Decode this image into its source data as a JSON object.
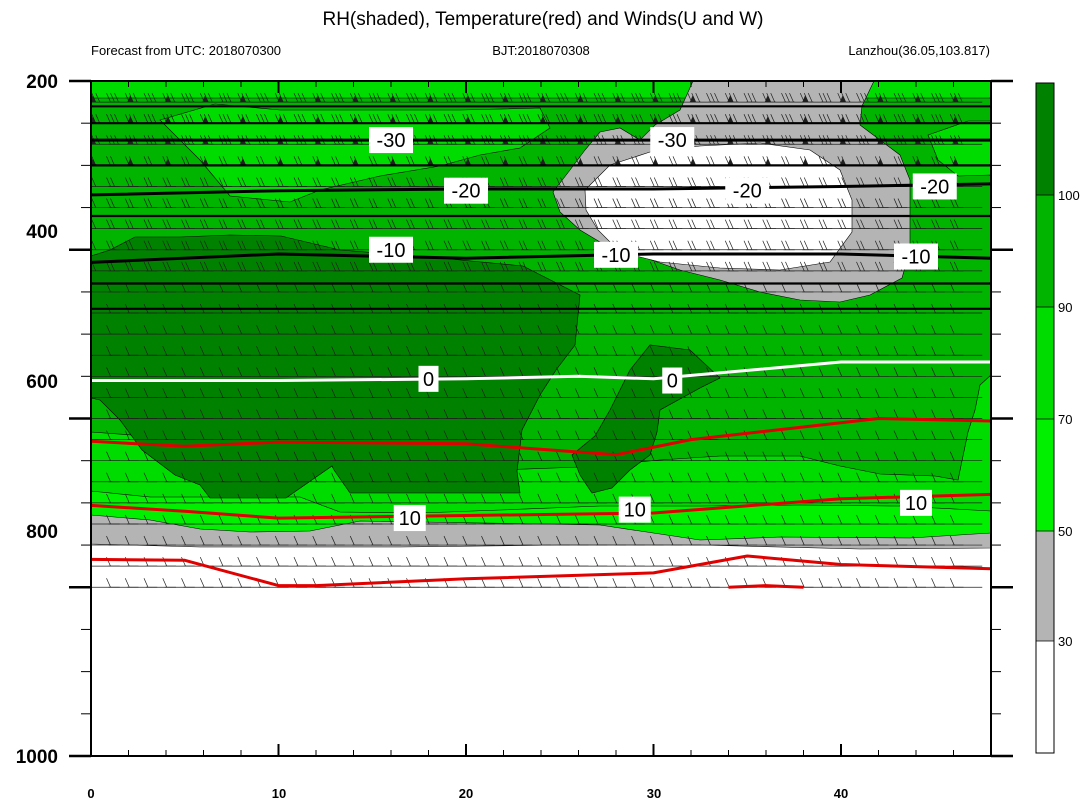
{
  "title": "RH(shaded), Temperature(red) and Winds(U and W)",
  "subtitle_left": "Forecast from UTC: 2018070300",
  "subtitle_center": "BJT:2018070308",
  "subtitle_right": "Lanzhou(36.05,103.817)",
  "colors": {
    "rh_bands": [
      "#ffffff",
      "#b4b4b4",
      "#00f000",
      "#00dc00",
      "#00b400",
      "#008200"
    ],
    "temperature_positive": "#e00000",
    "temperature_zero": "#ffffff",
    "temperature_negative": "#000000"
  },
  "chart_data": {
    "type": "heatmap",
    "title": "RH(shaded), Temperature(red) and Winds(U and W)",
    "x_ticks": [
      "0",
      "10",
      "20",
      "30",
      "40"
    ],
    "xlim": [
      0,
      48
    ],
    "y_ticks": [
      "200",
      "400",
      "600",
      "800",
      "1000"
    ],
    "ylim": [
      1000,
      200
    ],
    "colorbar": {
      "labels": [
        "30",
        "50",
        "70",
        "90",
        "100"
      ],
      "bands": [
        "0-30",
        "30-50",
        "50-70",
        "70-90",
        "90-100",
        ">100"
      ]
    },
    "contour_labels": [
      {
        "text": "-30",
        "x": 16,
        "y": 270
      },
      {
        "text": "-30",
        "x": 31,
        "y": 270
      },
      {
        "text": "-20",
        "x": 20,
        "y": 330
      },
      {
        "text": "-20",
        "x": 35,
        "y": 330
      },
      {
        "text": "-20",
        "x": 45,
        "y": 325
      },
      {
        "text": "-10",
        "x": 16,
        "y": 400
      },
      {
        "text": "-10",
        "x": 28,
        "y": 406
      },
      {
        "text": "-10",
        "x": 44,
        "y": 408
      },
      {
        "text": "0",
        "x": 18,
        "y": 553
      },
      {
        "text": "0",
        "x": 31,
        "y": 555
      },
      {
        "text": "10",
        "x": 17,
        "y": 718
      },
      {
        "text": "10",
        "x": 29,
        "y": 708
      },
      {
        "text": "10",
        "x": 44,
        "y": 700
      }
    ],
    "temperature_lines": [
      {
        "level": -30,
        "x": [
          0,
          48
        ],
        "y": [
          270,
          270
        ]
      },
      {
        "level": -20,
        "x": [
          0,
          10,
          20,
          30,
          40,
          48
        ],
        "y": [
          335,
          330,
          328,
          328,
          325,
          322
        ]
      },
      {
        "level": -10,
        "x": [
          0,
          10,
          20,
          30,
          40,
          48
        ],
        "y": [
          415,
          405,
          410,
          405,
          405,
          410
        ]
      },
      {
        "level": 0,
        "x": [
          0,
          10,
          20,
          26,
          30,
          40,
          48
        ],
        "y": [
          555,
          555,
          553,
          550,
          553,
          533,
          533
        ]
      },
      {
        "level": 5,
        "x": [
          0,
          5,
          10,
          20,
          28,
          32,
          42,
          48
        ],
        "y": [
          627,
          633,
          628,
          630,
          643,
          625,
          600,
          603
        ]
      },
      {
        "level": 10,
        "x": [
          0,
          5,
          10,
          20,
          30,
          40,
          48
        ],
        "y": [
          703,
          710,
          718,
          715,
          712,
          695,
          690
        ]
      },
      {
        "level": 15,
        "x": [
          0,
          5,
          10,
          12,
          20,
          30,
          35,
          40,
          48
        ],
        "y": [
          767,
          768,
          798,
          798,
          790,
          783,
          763,
          773,
          778
        ]
      },
      {
        "level": 20,
        "x": [
          34,
          36,
          38
        ],
        "y": [
          800,
          798,
          800
        ]
      }
    ]
  }
}
